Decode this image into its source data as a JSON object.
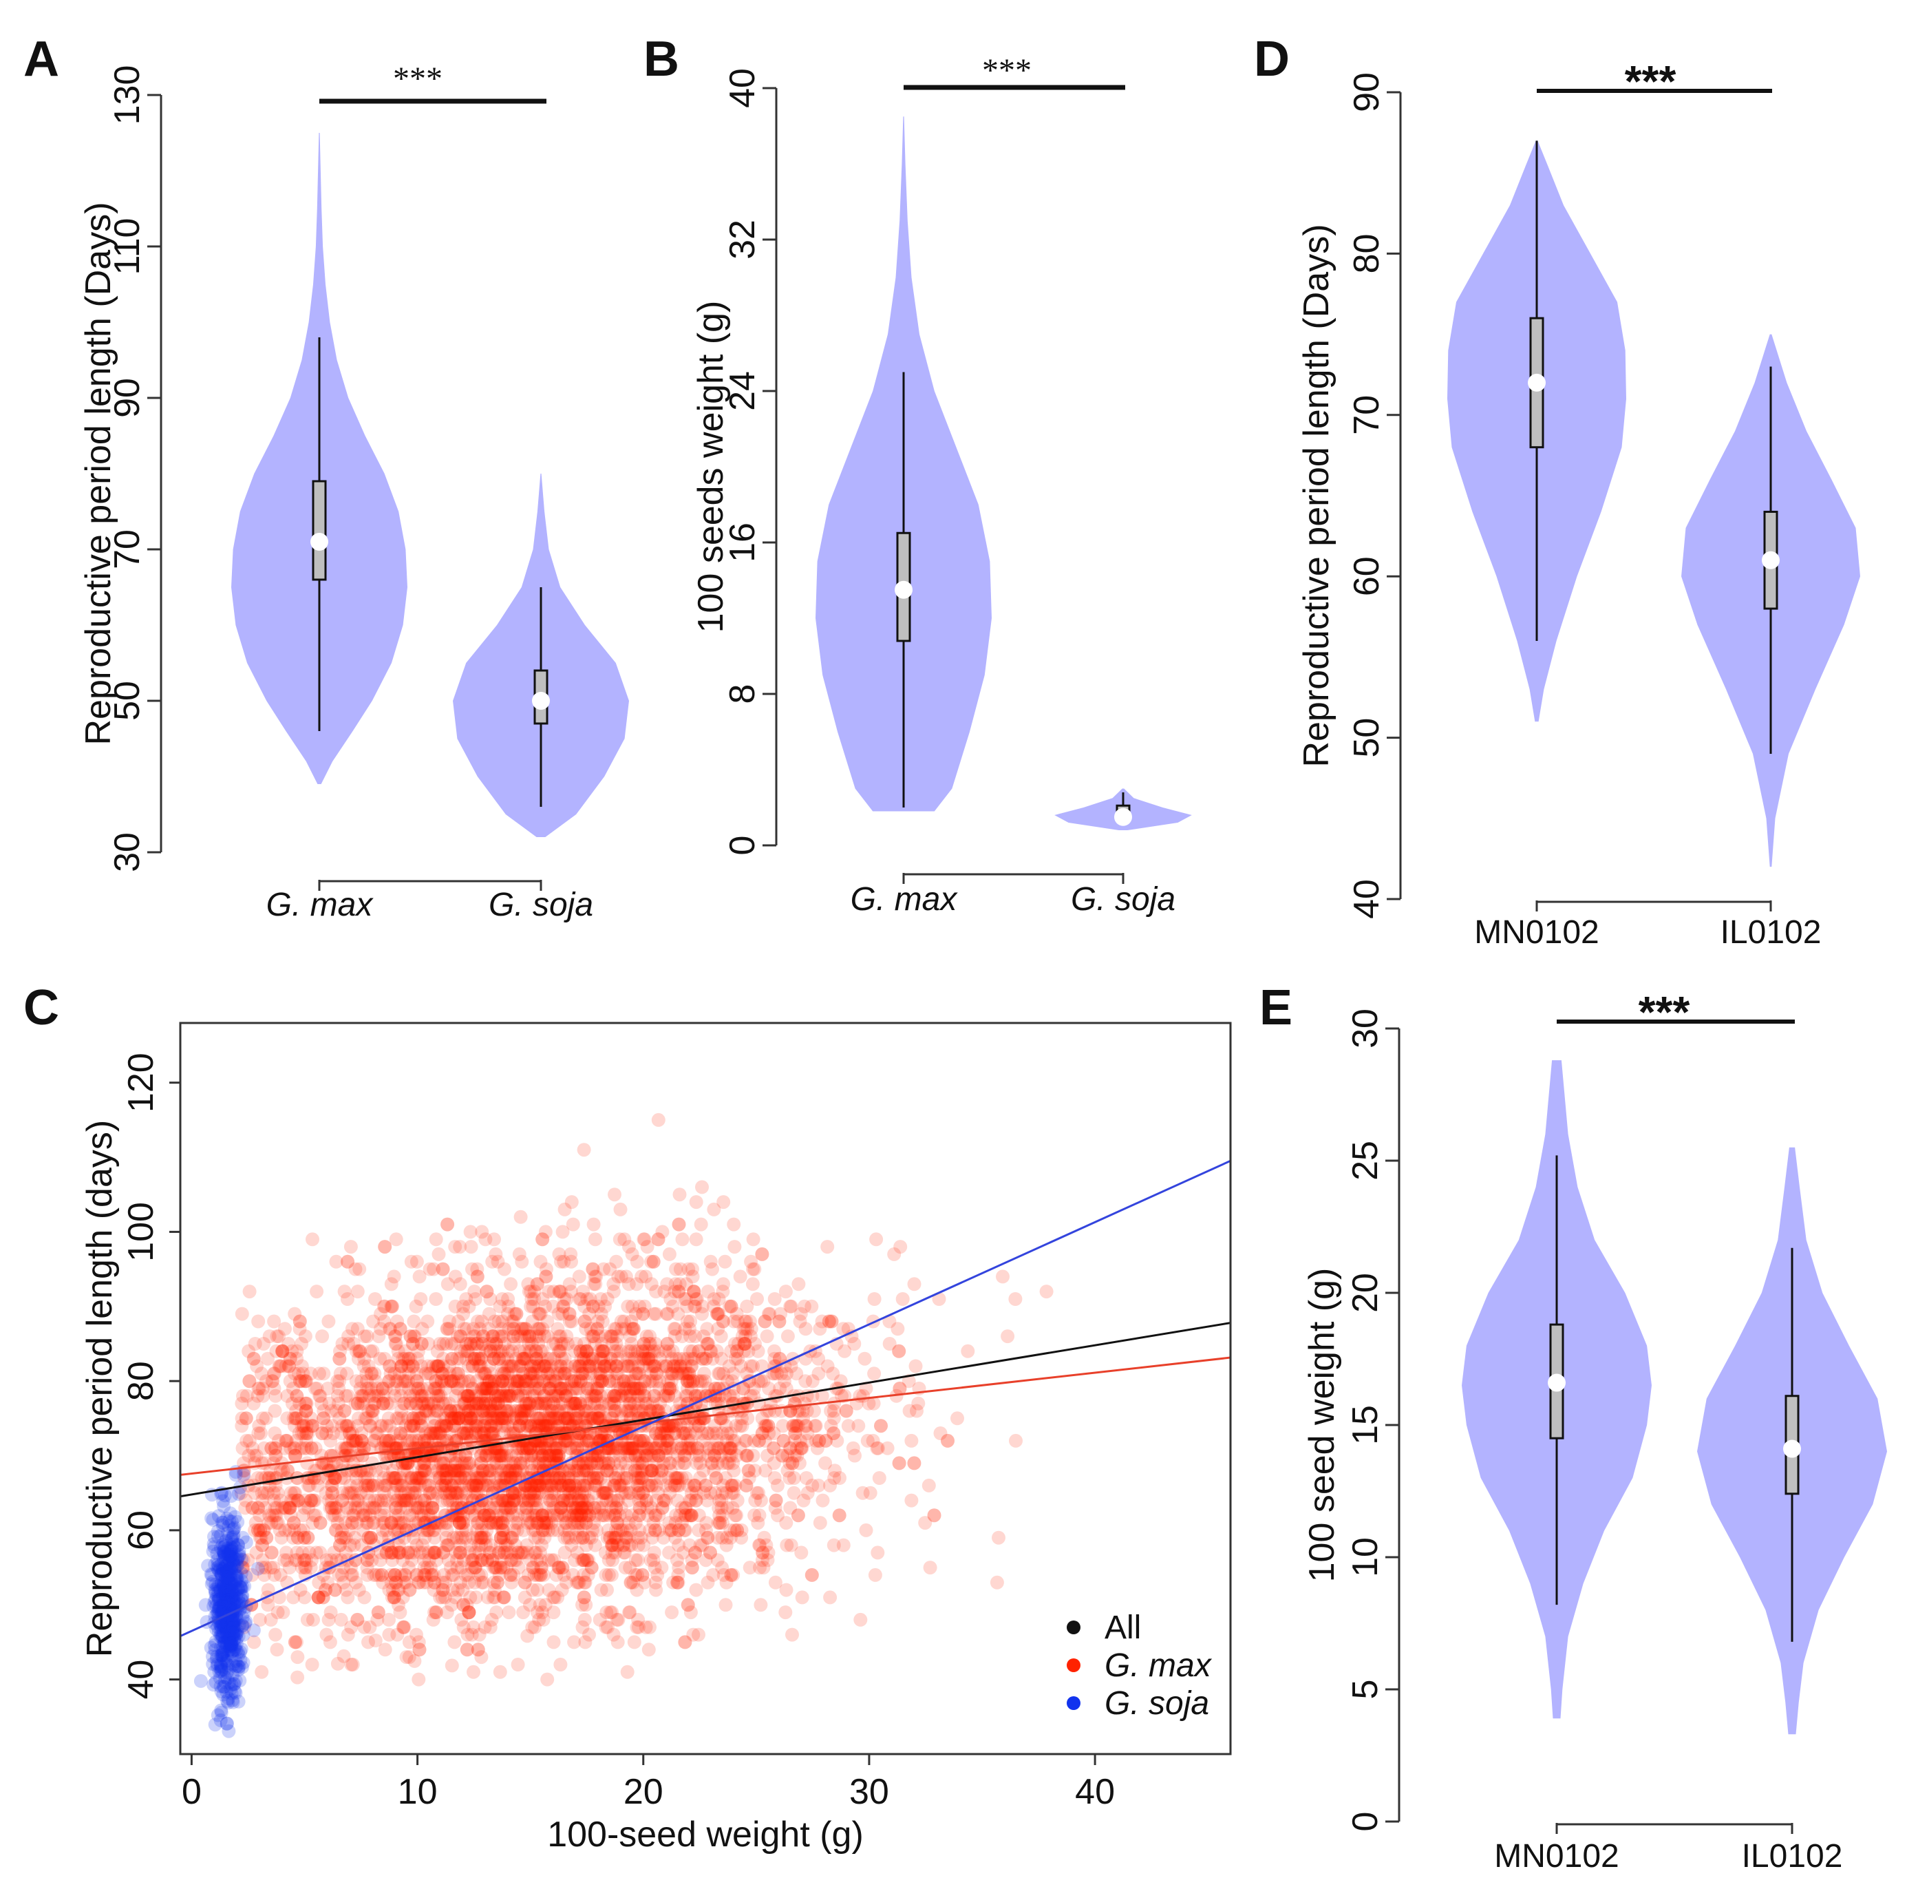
{
  "colors": {
    "violin": "#b3b3ff",
    "box": "#bfbfbf",
    "median": "#ffffff",
    "gmax": "#ff2200",
    "gsoja": "#1133ee",
    "all_line": "#111111",
    "gmax_line": "#e8402a",
    "gsoja_line": "#3344dd"
  },
  "chart_data": [
    {
      "id": "A",
      "type": "violin",
      "panel_label": "A",
      "ylabel": "Reproductive period length (Days)",
      "ylim": [
        30,
        130
      ],
      "yticks": [
        "30",
        "50",
        "70",
        "90",
        "110",
        "130"
      ],
      "significance": "***",
      "categories": [
        {
          "name": "G. max",
          "min": 46,
          "q1": 66,
          "median": 71,
          "q3": 79,
          "max": 98,
          "density": [
            [
              39,
              0.02
            ],
            [
              42,
              0.15
            ],
            [
              46,
              0.38
            ],
            [
              50,
              0.6
            ],
            [
              55,
              0.82
            ],
            [
              60,
              0.95
            ],
            [
              65,
              1.0
            ],
            [
              70,
              0.98
            ],
            [
              75,
              0.9
            ],
            [
              80,
              0.74
            ],
            [
              85,
              0.52
            ],
            [
              90,
              0.33
            ],
            [
              95,
              0.2
            ],
            [
              100,
              0.12
            ],
            [
              105,
              0.07
            ],
            [
              110,
              0.04
            ],
            [
              115,
              0.025
            ],
            [
              120,
              0.015
            ],
            [
              125,
              0.005
            ]
          ]
        },
        {
          "name": "G. soja",
          "min": 36,
          "q1": 47,
          "median": 50,
          "q3": 54,
          "max": 65,
          "density": [
            [
              32,
              0.05
            ],
            [
              35,
              0.4
            ],
            [
              40,
              0.72
            ],
            [
              45,
              0.95
            ],
            [
              50,
              1.0
            ],
            [
              55,
              0.85
            ],
            [
              60,
              0.5
            ],
            [
              65,
              0.22
            ],
            [
              70,
              0.09
            ],
            [
              75,
              0.04
            ],
            [
              80,
              0.005
            ]
          ]
        }
      ]
    },
    {
      "id": "B",
      "type": "violin",
      "panel_label": "B",
      "ylabel": "100 seeds weight (g)",
      "ylim": [
        0,
        40
      ],
      "yticks": [
        "0",
        "8",
        "16",
        "24",
        "32",
        "40"
      ],
      "significance": "***",
      "categories": [
        {
          "name": "G. max",
          "min": 2,
          "q1": 10.8,
          "median": 13.5,
          "q3": 16.5,
          "max": 25,
          "density": [
            [
              1.8,
              0.35
            ],
            [
              3,
              0.55
            ],
            [
              6,
              0.75
            ],
            [
              9,
              0.92
            ],
            [
              12,
              1.0
            ],
            [
              15,
              0.98
            ],
            [
              18,
              0.85
            ],
            [
              21,
              0.6
            ],
            [
              24,
              0.35
            ],
            [
              27,
              0.18
            ],
            [
              30,
              0.09
            ],
            [
              33,
              0.045
            ],
            [
              36,
              0.02
            ],
            [
              38.5,
              0.005
            ]
          ]
        },
        {
          "name": "G. soja",
          "min": 1.2,
          "q1": 1.5,
          "median": 1.5,
          "q3": 2.1,
          "max": 2.8,
          "density": [
            [
              0.8,
              0.05
            ],
            [
              1.2,
              0.62
            ],
            [
              1.6,
              0.78
            ],
            [
              2.0,
              0.45
            ],
            [
              2.5,
              0.12
            ],
            [
              3.0,
              0.01
            ]
          ]
        }
      ]
    },
    {
      "id": "D",
      "type": "violin",
      "panel_label": "D",
      "ylabel": "Reproductive period length (Days)",
      "ylim": [
        40,
        90
      ],
      "yticks": [
        "40",
        "50",
        "60",
        "70",
        "80",
        "90"
      ],
      "significance": "***",
      "categories": [
        {
          "name": "MN0102",
          "min": 56,
          "q1": 68,
          "median": 72,
          "q3": 76,
          "max": 87,
          "density": [
            [
              51,
              0.02
            ],
            [
              53,
              0.08
            ],
            [
              56,
              0.22
            ],
            [
              60,
              0.45
            ],
            [
              64,
              0.72
            ],
            [
              68,
              0.95
            ],
            [
              71,
              1.0
            ],
            [
              74,
              0.99
            ],
            [
              77,
              0.9
            ],
            [
              80,
              0.6
            ],
            [
              83,
              0.3
            ],
            [
              85.5,
              0.12
            ],
            [
              87,
              0.01
            ]
          ]
        },
        {
          "name": "IL0102",
          "min": 49,
          "q1": 58,
          "median": 61,
          "q3": 64,
          "max": 73,
          "density": [
            [
              42,
              0.01
            ],
            [
              45,
              0.05
            ],
            [
              49,
              0.2
            ],
            [
              53,
              0.5
            ],
            [
              57,
              0.82
            ],
            [
              60,
              1.0
            ],
            [
              63,
              0.95
            ],
            [
              66,
              0.68
            ],
            [
              69,
              0.4
            ],
            [
              72,
              0.18
            ],
            [
              75,
              0.01
            ]
          ]
        }
      ]
    },
    {
      "id": "E",
      "type": "violin",
      "panel_label": "E",
      "ylabel": "100 seed weight (g)",
      "ylim": [
        0,
        30
      ],
      "yticks": [
        "0",
        "5",
        "10",
        "15",
        "20",
        "25",
        "30"
      ],
      "significance": "***",
      "categories": [
        {
          "name": "MN0102",
          "min": 8.2,
          "q1": 14.5,
          "median": 16.6,
          "q3": 18.8,
          "max": 25.2,
          "density": [
            [
              3.9,
              0.04
            ],
            [
              5,
              0.06
            ],
            [
              7,
              0.12
            ],
            [
              9,
              0.28
            ],
            [
              11,
              0.5
            ],
            [
              13,
              0.8
            ],
            [
              15,
              0.95
            ],
            [
              16.5,
              1.0
            ],
            [
              18,
              0.95
            ],
            [
              20,
              0.72
            ],
            [
              22,
              0.4
            ],
            [
              24,
              0.22
            ],
            [
              26,
              0.12
            ],
            [
              28.8,
              0.05
            ]
          ]
        },
        {
          "name": "IL0102",
          "min": 6.8,
          "q1": 12.4,
          "median": 14.1,
          "q3": 16.1,
          "max": 21.7,
          "density": [
            [
              3.3,
              0.04
            ],
            [
              4.5,
              0.07
            ],
            [
              6,
              0.12
            ],
            [
              8,
              0.28
            ],
            [
              10,
              0.55
            ],
            [
              12,
              0.85
            ],
            [
              14,
              1.0
            ],
            [
              16,
              0.9
            ],
            [
              18,
              0.6
            ],
            [
              20,
              0.32
            ],
            [
              22,
              0.15
            ],
            [
              24,
              0.08
            ],
            [
              25.5,
              0.03
            ]
          ]
        }
      ]
    },
    {
      "id": "C",
      "type": "scatter",
      "panel_label": "C",
      "xlabel": "100-seed weight (g)",
      "ylabel": "Reproductive period length (days)",
      "xlim": [
        -0.5,
        46
      ],
      "ylim": [
        30,
        128
      ],
      "xticks": [
        "0",
        "10",
        "20",
        "30",
        "40"
      ],
      "yticks": [
        "40",
        "60",
        "80",
        "100",
        "120"
      ],
      "series": [
        {
          "name": "G. max",
          "n_points_approx": 4500,
          "x_center": 15,
          "x_sd": 6.5,
          "y_center": 71,
          "y_sd": 11
        },
        {
          "name": "G. soja",
          "n_points_approx": 500,
          "x_center": 1.6,
          "x_sd": 0.35,
          "y_center": 50,
          "y_sd": 6
        }
      ],
      "fit_lines": [
        {
          "name": "All",
          "intercept": 64.8,
          "slope": 0.5
        },
        {
          "name": "G. max",
          "intercept": 67.6,
          "slope": 0.338
        },
        {
          "name": "G. soja",
          "intercept": 46.5,
          "slope": 1.37
        }
      ],
      "legend": [
        {
          "label": "All",
          "italic": false
        },
        {
          "label": "G. max",
          "italic": true
        },
        {
          "label": "G. soja",
          "italic": true
        }
      ],
      "legend_position": "bottom-right"
    }
  ]
}
